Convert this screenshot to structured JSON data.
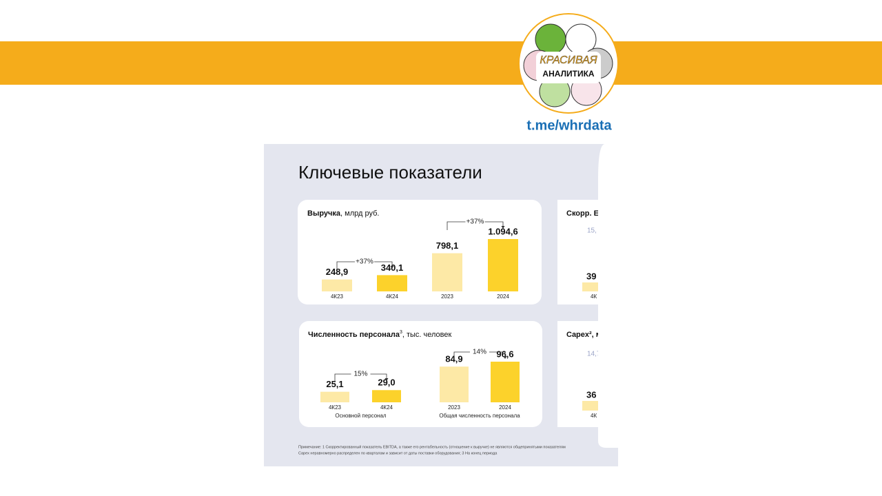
{
  "brand": {
    "logo_top": "КРАСИВАЯ",
    "logo_bottom": "АНАЛИТИКА",
    "link": "t.me/whrdata"
  },
  "slide": {
    "title": "Ключевые показатели",
    "panels": [
      {
        "title": "Выручка",
        "unit": ", млрд руб.",
        "categories": [
          "4К23",
          "4К24",
          "2023",
          "2024"
        ],
        "values": [
          248.9,
          340.1,
          798.1,
          1094.6
        ],
        "value_labels": [
          "248,9",
          "340,1",
          "798,1",
          "1.094,6"
        ],
        "growth": [
          "+37%",
          "+37%"
        ]
      },
      {
        "title": "Численность персонала",
        "sup": "3",
        "unit": ", тыс. человек",
        "categories": [
          "4К23",
          "4К24",
          "2023",
          "2024"
        ],
        "values": [
          25.1,
          29.0,
          84.9,
          96.6
        ],
        "value_labels": [
          "25,1",
          "29,0",
          "84,9",
          "96,6"
        ],
        "growth": [
          "15%",
          "14%"
        ],
        "groups": [
          "Основной персонал",
          "Общая численность персонала"
        ]
      }
    ],
    "cropped_panels": [
      {
        "title": "Скорр. EI",
        "top_label": "15,",
        "value_label": "39",
        "category": "4К"
      },
      {
        "title": "Capex², м",
        "top_label": "14,7",
        "value_label": "36",
        "category": "4К"
      }
    ],
    "note": [
      "Примечание: 1 Скорректированный показатель EBITDA, а также его рентабельность (отношение к выручке) не являются общепринятыми показателям",
      "Capex неравномерно распределен по кварталам и зависит от даты поставки оборудования; 3 На конец периода"
    ]
  }
}
